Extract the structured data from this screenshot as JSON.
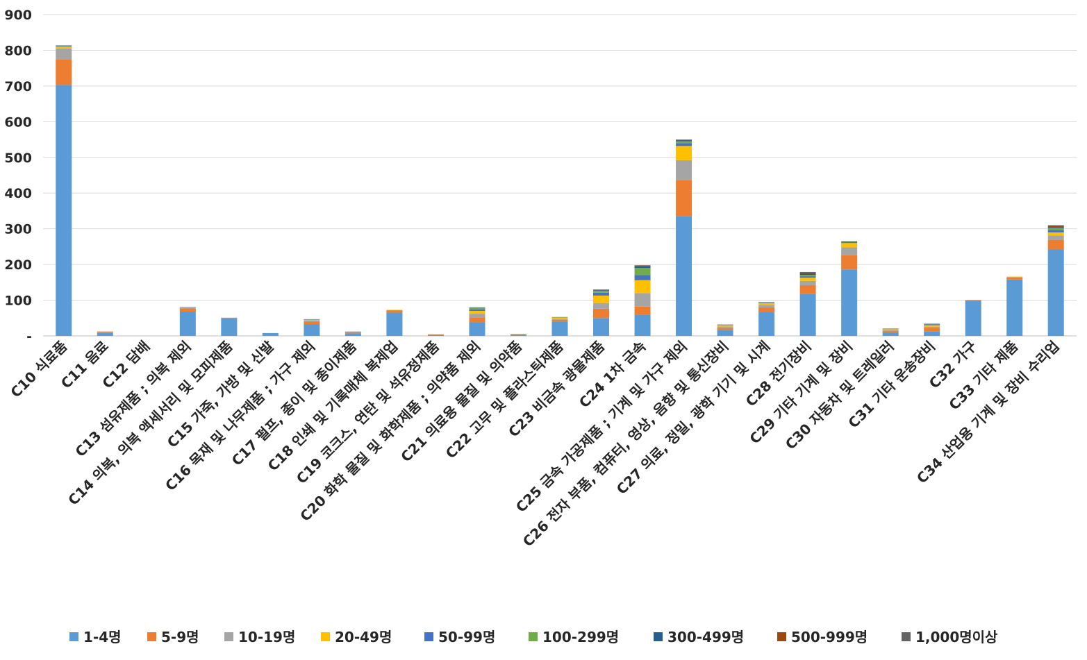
{
  "chart_data": {
    "type": "bar",
    "stacked": true,
    "title": "",
    "xlabel": "",
    "ylabel": "",
    "ylim": [
      0,
      900
    ],
    "yticks": [
      0,
      100,
      200,
      300,
      400,
      500,
      600,
      700,
      800,
      900
    ],
    "ytick_labels": [
      "-",
      "100",
      "200",
      "300",
      "400",
      "500",
      "600",
      "700",
      "800",
      "900"
    ],
    "grid": true,
    "legend_position": "bottom",
    "categories": [
      "C10 식료품",
      "C11 음료",
      "C12 담배",
      "C13 섬유제품 ; 의복 제외",
      "C14 의복, 의복 액세서리 및 모피제품",
      "C15 가죽, 가방 및 신발",
      "C16 목재 및 나무제품 ; 가구 제외",
      "C17 펄프, 종이 및 종이제품",
      "C18 인쇄 및 기록매체 복제업",
      "C19 코크스, 연탄 및 석유정제품",
      "C20 화학 물질 및 화학제품 ; 의약품 제외",
      "C21 의료용 물질 및 의약품",
      "C22 고무 및 플라스틱제품",
      "C23 비금속 광물제품",
      "C24 1차 금속",
      "C25 금속 가공제품 ; 기계 및 가구 제외",
      "C26 전자 부품, 컴퓨터, 영상, 음향 및 통신장비",
      "C27 의료, 정밀, 광학 기기 및 시계",
      "C28 전기장비",
      "C29 기타 기계 및 장비",
      "C30 자동차 및 트레일러",
      "C31 기타 운송장비",
      "C32 가구",
      "C33 기타 제품",
      "C34 산업용 기계 및 장비 수리업"
    ],
    "series": [
      {
        "name": "1-4명",
        "color": "#5B9BD5",
        "values": [
          703,
          8,
          0,
          68,
          50,
          8,
          33,
          7,
          65,
          2,
          38,
          3,
          40,
          50,
          60,
          335,
          17,
          67,
          117,
          186,
          10,
          12,
          98,
          158,
          242
        ]
      },
      {
        "name": "5-9명",
        "color": "#ED7D31",
        "values": [
          72,
          3,
          0,
          9,
          1,
          0,
          7,
          3,
          6,
          1,
          14,
          1,
          5,
          26,
          22,
          102,
          5,
          13,
          25,
          40,
          4,
          11,
          2,
          6,
          27
        ]
      },
      {
        "name": "10-19명",
        "color": "#A5A5A5",
        "values": [
          30,
          1,
          0,
          2,
          0,
          0,
          3,
          2,
          1,
          1,
          10,
          1,
          3,
          16,
          38,
          55,
          4,
          7,
          12,
          22,
          3,
          3,
          1,
          1,
          12
        ]
      },
      {
        "name": "20-49명",
        "color": "#FFC000",
        "values": [
          5,
          1,
          0,
          1,
          0,
          0,
          2,
          1,
          1,
          1,
          8,
          1,
          3,
          21,
          36,
          40,
          4,
          5,
          9,
          12,
          2,
          4,
          0,
          1,
          9
        ]
      },
      {
        "name": "50-99명",
        "color": "#4472C4",
        "values": [
          2,
          0,
          0,
          1,
          0,
          0,
          1,
          0,
          0,
          0,
          4,
          0,
          1,
          8,
          14,
          8,
          1,
          2,
          4,
          3,
          1,
          2,
          0,
          0,
          7
        ]
      },
      {
        "name": "100-299명",
        "color": "#70AD47",
        "values": [
          2,
          0,
          0,
          0,
          0,
          0,
          1,
          0,
          0,
          0,
          5,
          0,
          1,
          5,
          20,
          5,
          1,
          1,
          4,
          3,
          1,
          1,
          0,
          0,
          5
        ]
      },
      {
        "name": "300-499명",
        "color": "#255E91",
        "values": [
          0,
          0,
          0,
          0,
          0,
          0,
          0,
          0,
          0,
          0,
          1,
          0,
          0,
          2,
          5,
          3,
          0,
          0,
          3,
          0,
          0,
          1,
          0,
          0,
          3
        ]
      },
      {
        "name": "500-999명",
        "color": "#9E480E",
        "values": [
          0,
          0,
          0,
          0,
          0,
          0,
          0,
          0,
          0,
          0,
          0,
          0,
          0,
          1,
          2,
          1,
          0,
          0,
          3,
          0,
          0,
          0,
          0,
          0,
          3
        ]
      },
      {
        "name": "1,000명이상",
        "color": "#636363",
        "values": [
          0,
          0,
          0,
          0,
          0,
          0,
          0,
          0,
          0,
          0,
          0,
          0,
          0,
          1,
          1,
          1,
          0,
          0,
          2,
          0,
          0,
          0,
          0,
          0,
          2
        ]
      }
    ]
  }
}
